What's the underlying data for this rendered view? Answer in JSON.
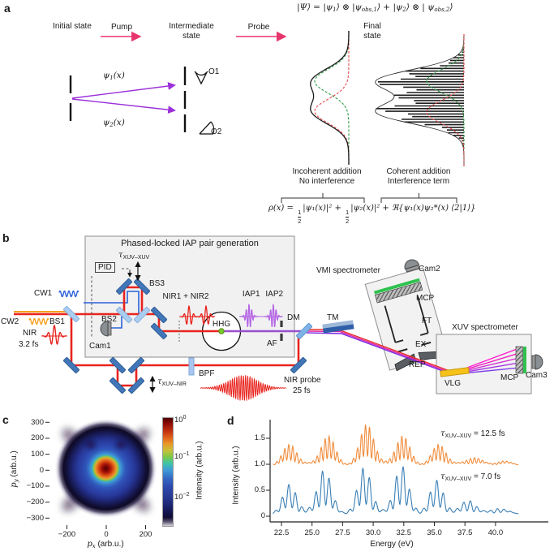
{
  "panel_a": {
    "label": "a",
    "formula": {
      "p1": "|Ψ⟩ = |ψ",
      "s1": "1",
      "p2": "⟩ ⊗ |ψ",
      "s2": "obs,1",
      "p3": "⟩ + |ψ",
      "s3": "2",
      "p4": "⟩ ⊗ | ψ",
      "s4": "obs,2",
      "p5": "⟩"
    },
    "flow": {
      "initial": "Initial state",
      "pump": "Pump",
      "intermediate": "Intermediate state",
      "probe": "Probe",
      "final": "Final state"
    },
    "wavefunctions": {
      "psi1": {
        "base": "ψ",
        "sub": "1",
        "rest": "(x)"
      },
      "psi2": {
        "base": "ψ",
        "sub": "2",
        "rest": "(x)"
      }
    },
    "observers": {
      "o1": "O1",
      "o2": "O2"
    },
    "captions": {
      "incoherent_1": "Incoherent addition",
      "incoherent_2": "No interference",
      "coherent_1": "Coherent addition",
      "coherent_2": "Interference term"
    },
    "equation": {
      "lhs": "ρ(x) = ",
      "num": "1",
      "den": "2",
      "t1": "|ψ₁(x)|²",
      "p1": " + ",
      "t2": "|ψ₂(x)|²",
      "p2": " + ",
      "t3": "ℜ{ψ₁(x)ψ₂*(x) ⟨2|1⟩}"
    }
  },
  "panel_b": {
    "label": "b",
    "box_title": "Phased-locked IAP pair generation",
    "pid": "PID",
    "delays": {
      "xuv_xuv": {
        "sym": "τ",
        "sub": "XUV–XUV"
      },
      "xuv_nir": {
        "sym": "τ",
        "sub": "XUV–NIR"
      }
    },
    "optics": {
      "cw1": "CW1",
      "cw2": "CW2",
      "bs1": "BS1",
      "bs2": "BS2",
      "bs3": "BS3",
      "nir": "NIR",
      "nir_dur": "3.2 fs",
      "cam1": "Cam1",
      "nir12": "NIR1 + NIR2",
      "hhg": "HHG",
      "iap": "IAP1 IAP2",
      "af": "AF",
      "dm": "DM",
      "tm": "TM",
      "bpf": "BPF",
      "probe_label": "NIR probe",
      "probe_dur": "25 fs"
    },
    "vmi": {
      "title": "VMI spectrometer",
      "cam2": "Cam2",
      "mcp": "MCP",
      "ft": "FT",
      "ex": "EX",
      "rep": "REP"
    },
    "xuv": {
      "title": "XUV spectrometer",
      "vlg": "VLG",
      "mcp": "MCP",
      "cam3": "Cam3"
    }
  },
  "panel_c": {
    "label": "c"
  },
  "panel_d": {
    "label": "d"
  },
  "chart_data": [
    {
      "id": "c",
      "type": "heatmap",
      "xlabel": "px (arb.u.)",
      "ylabel": "py (arb.u.)",
      "xlabel_parts": {
        "base": "p",
        "sub": "x",
        "rest": " (arb.u.)"
      },
      "ylabel_parts": {
        "base": "p",
        "sub": "y",
        "rest": " (arb.u.)"
      },
      "xticks": [
        -200,
        0,
        200
      ],
      "yticks": [
        300,
        200,
        100,
        0,
        -100,
        -200,
        -300
      ],
      "xlim": [
        -320,
        320
      ],
      "ylim": [
        -330,
        330
      ],
      "colorbar": {
        "label": "Intensity (arb.u.)",
        "scale": "log",
        "ticks": [
          "10^0",
          "10^-1",
          "10^-2"
        ]
      },
      "description": "Velocity-map photoelectron image: intense dark-red core at origin, orange ring to ~80 arb.u., narrow yellow-green/teal ring near ~100, broad blue halo to ~250, dark navy outer boundary ~300 with four diagonal lobes fading to white."
    },
    {
      "id": "d",
      "type": "line",
      "xlabel": "Energy (eV)",
      "ylabel": "Intensity (arb.u.)",
      "xlim": [
        21.8,
        41.9
      ],
      "ylim": [
        -0.1,
        1.9
      ],
      "xticks": [
        22.5,
        25.0,
        27.5,
        30.0,
        32.5,
        35.0,
        37.5,
        40.0
      ],
      "yticks": [
        0,
        0.5,
        1.0,
        1.5
      ],
      "series": [
        {
          "name": "tau_XUV-XUV = 12.5 fs",
          "color": "#f08c3c",
          "offset": 1.0,
          "fringe_period_eV": 0.33,
          "envelope_width_eV": 0.8,
          "envelope_centers_eV": [
            23.2,
            26.3,
            29.5,
            32.4,
            35.4,
            38.2,
            40.5
          ],
          "envelope_amplitudes": [
            0.38,
            0.55,
            0.78,
            0.55,
            0.38,
            0.14,
            0.06
          ]
        },
        {
          "name": "tau_XUV-XUV = 7.0 fs",
          "color": "#3a7fb5",
          "offset": 0.06,
          "fringe_period_eV": 0.55,
          "envelope_width_eV": 0.8,
          "envelope_centers_eV": [
            23.2,
            26.0,
            29.3,
            32.3,
            35.2,
            37.8,
            40.2
          ],
          "envelope_amplitudes": [
            0.55,
            0.85,
            0.88,
            0.92,
            0.62,
            0.26,
            0.1
          ]
        }
      ],
      "series_labels": [
        {
          "sym": "τ",
          "sub": "XUV–XUV",
          "rest": " = 12.5 fs"
        },
        {
          "sym": "τ",
          "sub": "XUV–XUV",
          "rest": " = 7.0 fs"
        }
      ]
    }
  ]
}
